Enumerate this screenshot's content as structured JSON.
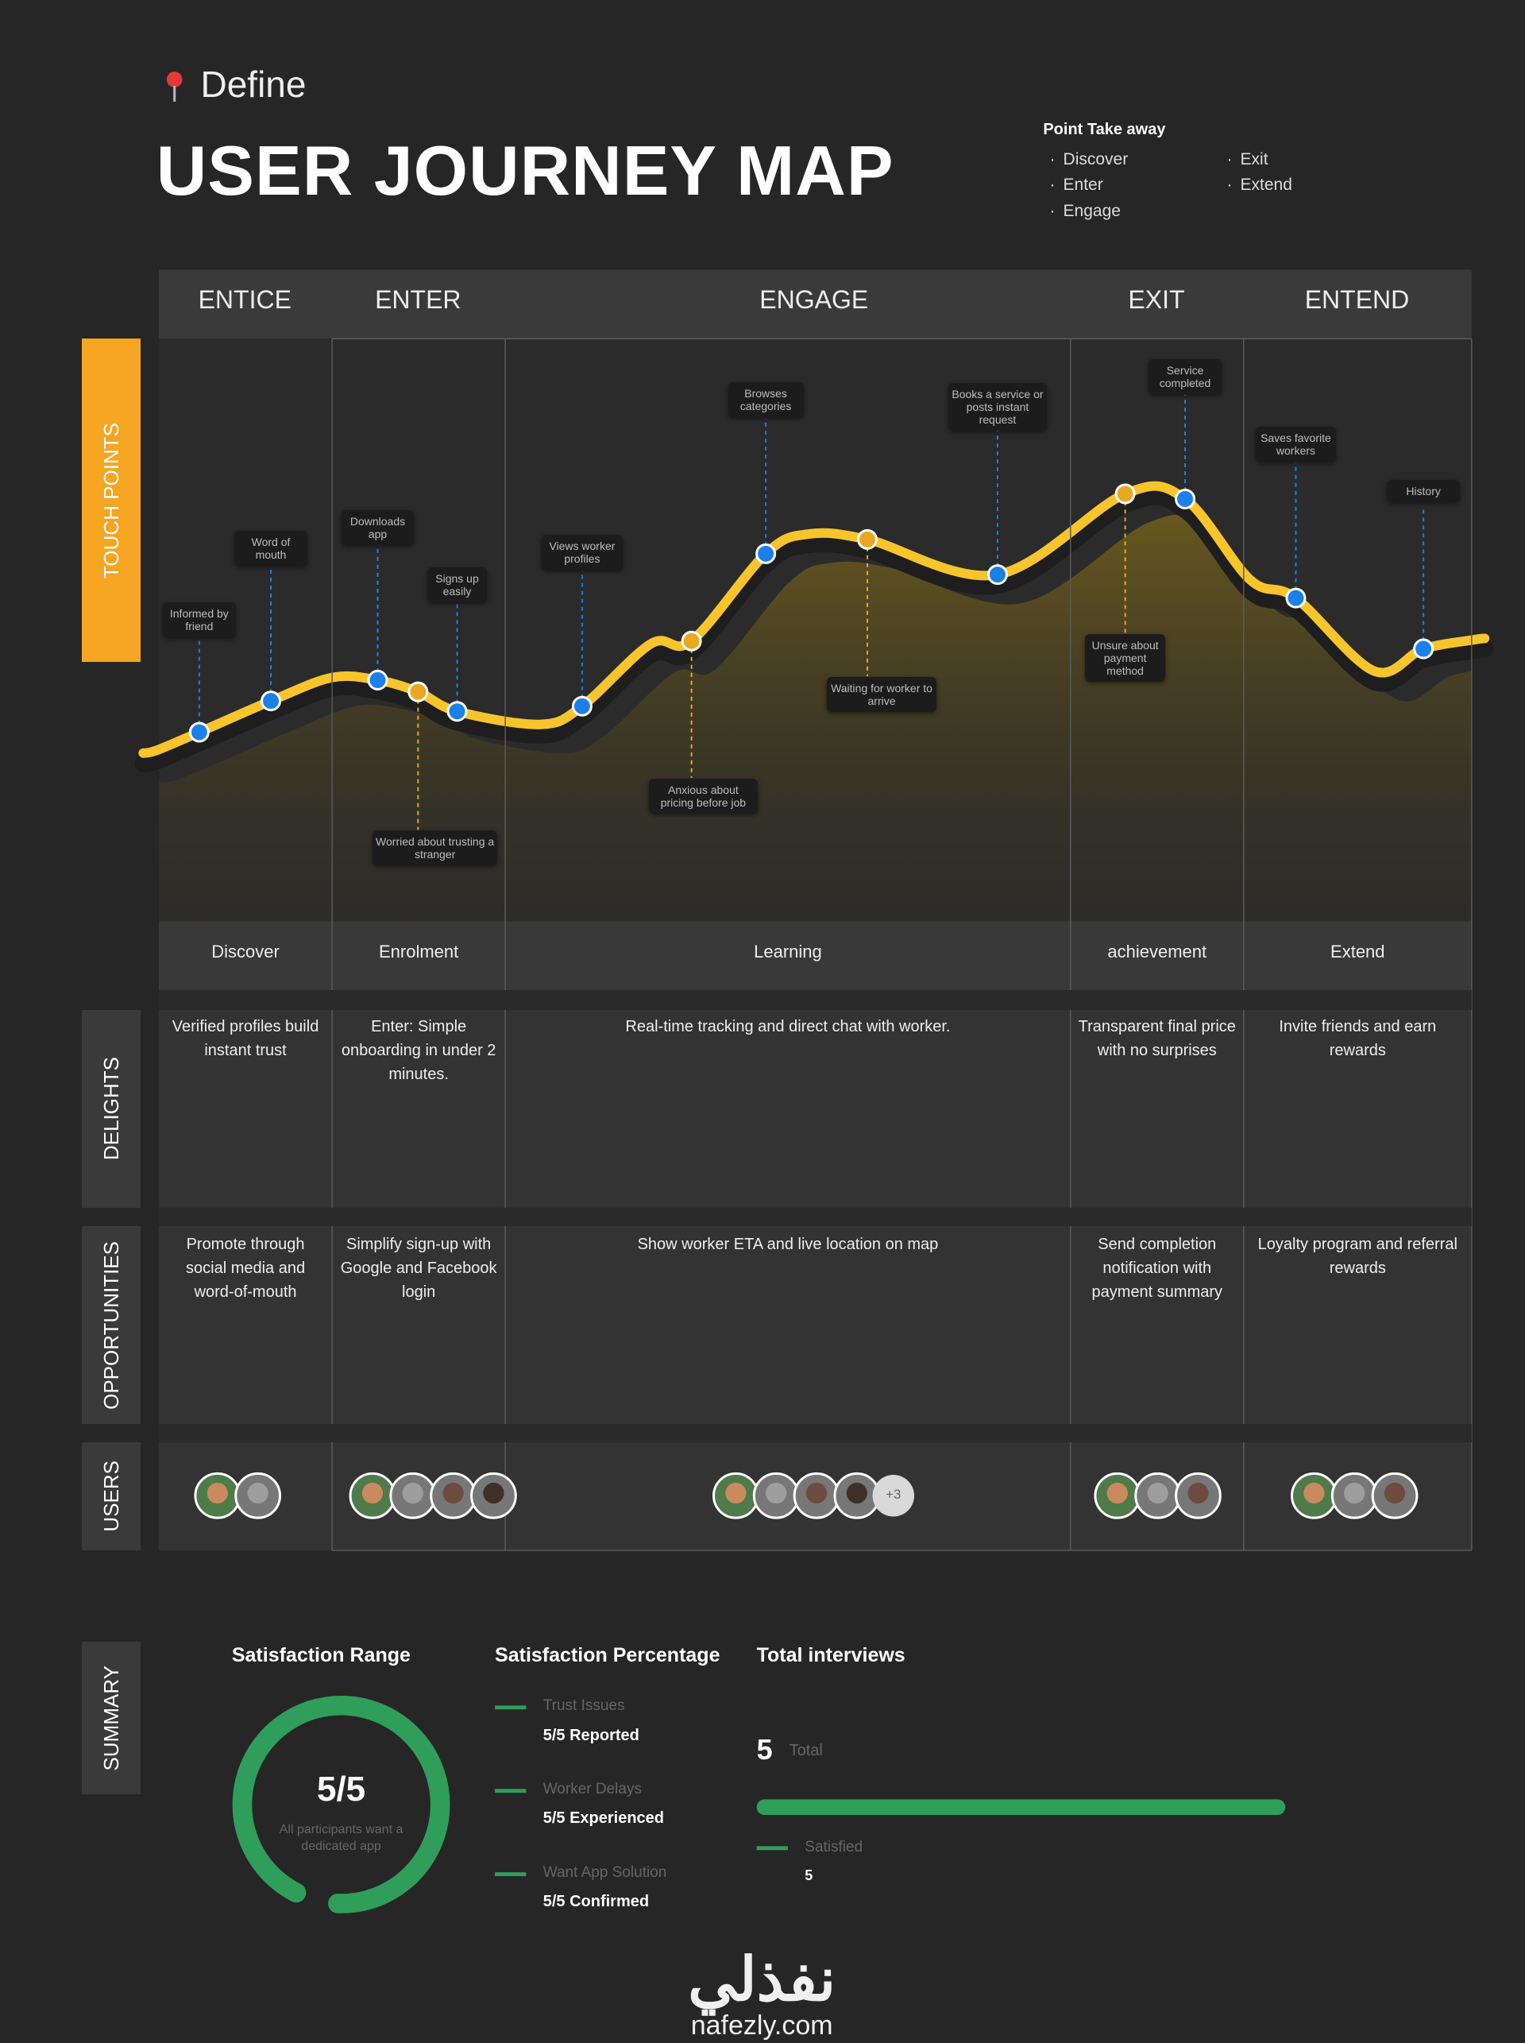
{
  "header": {
    "section": "Define",
    "title": "USER JOURNEY MAP",
    "takeaway": {
      "title": "Point Take away",
      "items": [
        "Discover",
        "Enter",
        "Engage",
        "Exit",
        "Extend"
      ]
    }
  },
  "stages": [
    "ENTICE",
    "ENTER",
    "ENGAGE",
    "EXIT",
    "ENTEND"
  ],
  "row_labels": {
    "touch_points": "TOUCH POINTS",
    "delights": "DELIGHTS",
    "opportunities": "OPPORTUNITIES",
    "users": "USERS",
    "summary": "SUMMARY"
  },
  "colors": {
    "touchpoint": "#1d7fe8",
    "pain": "#e9a820",
    "curve": "#f7c52b"
  },
  "touch_points": [
    {
      "label": "Informed by friend",
      "kind": "touchpoint"
    },
    {
      "label": "Word of mouth",
      "kind": "touchpoint"
    },
    {
      "label": "Downloads app",
      "kind": "touchpoint"
    },
    {
      "label": "Worried about trusting a stranger",
      "kind": "pain"
    },
    {
      "label": "Signs up easily",
      "kind": "touchpoint"
    },
    {
      "label": "Views worker profiles",
      "kind": "touchpoint"
    },
    {
      "label": "Anxious about pricing before job",
      "kind": "pain"
    },
    {
      "label": "Browses categories",
      "kind": "touchpoint"
    },
    {
      "label": "Waiting for worker to arrive",
      "kind": "pain"
    },
    {
      "label": "Books a service or posts instant request",
      "kind": "touchpoint"
    },
    {
      "label": "Unsure about payment method",
      "kind": "pain"
    },
    {
      "label": "Service completed",
      "kind": "touchpoint"
    },
    {
      "label": "Saves favorite workers",
      "kind": "touchpoint"
    },
    {
      "label": "History",
      "kind": "touchpoint"
    }
  ],
  "phases": [
    "Discover",
    "Enrolment",
    "Learning",
    "achievement",
    "Extend"
  ],
  "delights": [
    "Verified profiles build instant trust",
    "Enter: Simple onboarding in under 2 minutes.",
    "Real-time tracking and direct chat with worker.",
    "Transparent final price with no surprises",
    "Invite friends and earn rewards"
  ],
  "opportunities": [
    "Promote through social media and word-of-mouth",
    "Simplify sign-up with Google and Facebook login",
    "Show worker ETA and live location on map",
    "Send completion notification with payment summary",
    "Loyalty program and referral rewards"
  ],
  "users": {
    "extra": "+3"
  },
  "summary": {
    "range": {
      "title": "Satisfaction Range",
      "score": "5/5",
      "caption": "All participants want a dedicated app"
    },
    "percentage": {
      "title": "Satisfaction Percentage",
      "items": [
        {
          "label": "Trust Issues",
          "value": "5/5 Reported"
        },
        {
          "label": "Worker Delays",
          "value": "5/5 Experienced"
        },
        {
          "label": "Want App Solution",
          "value": "5/5 Confirmed"
        }
      ]
    },
    "interviews": {
      "title": "Total interviews",
      "total": "5",
      "total_label": "Total",
      "legend": "Satisfied",
      "satisfied": "5"
    }
  },
  "brand": {
    "arabic": "نفذلي",
    "latin": "nafezly.com"
  }
}
